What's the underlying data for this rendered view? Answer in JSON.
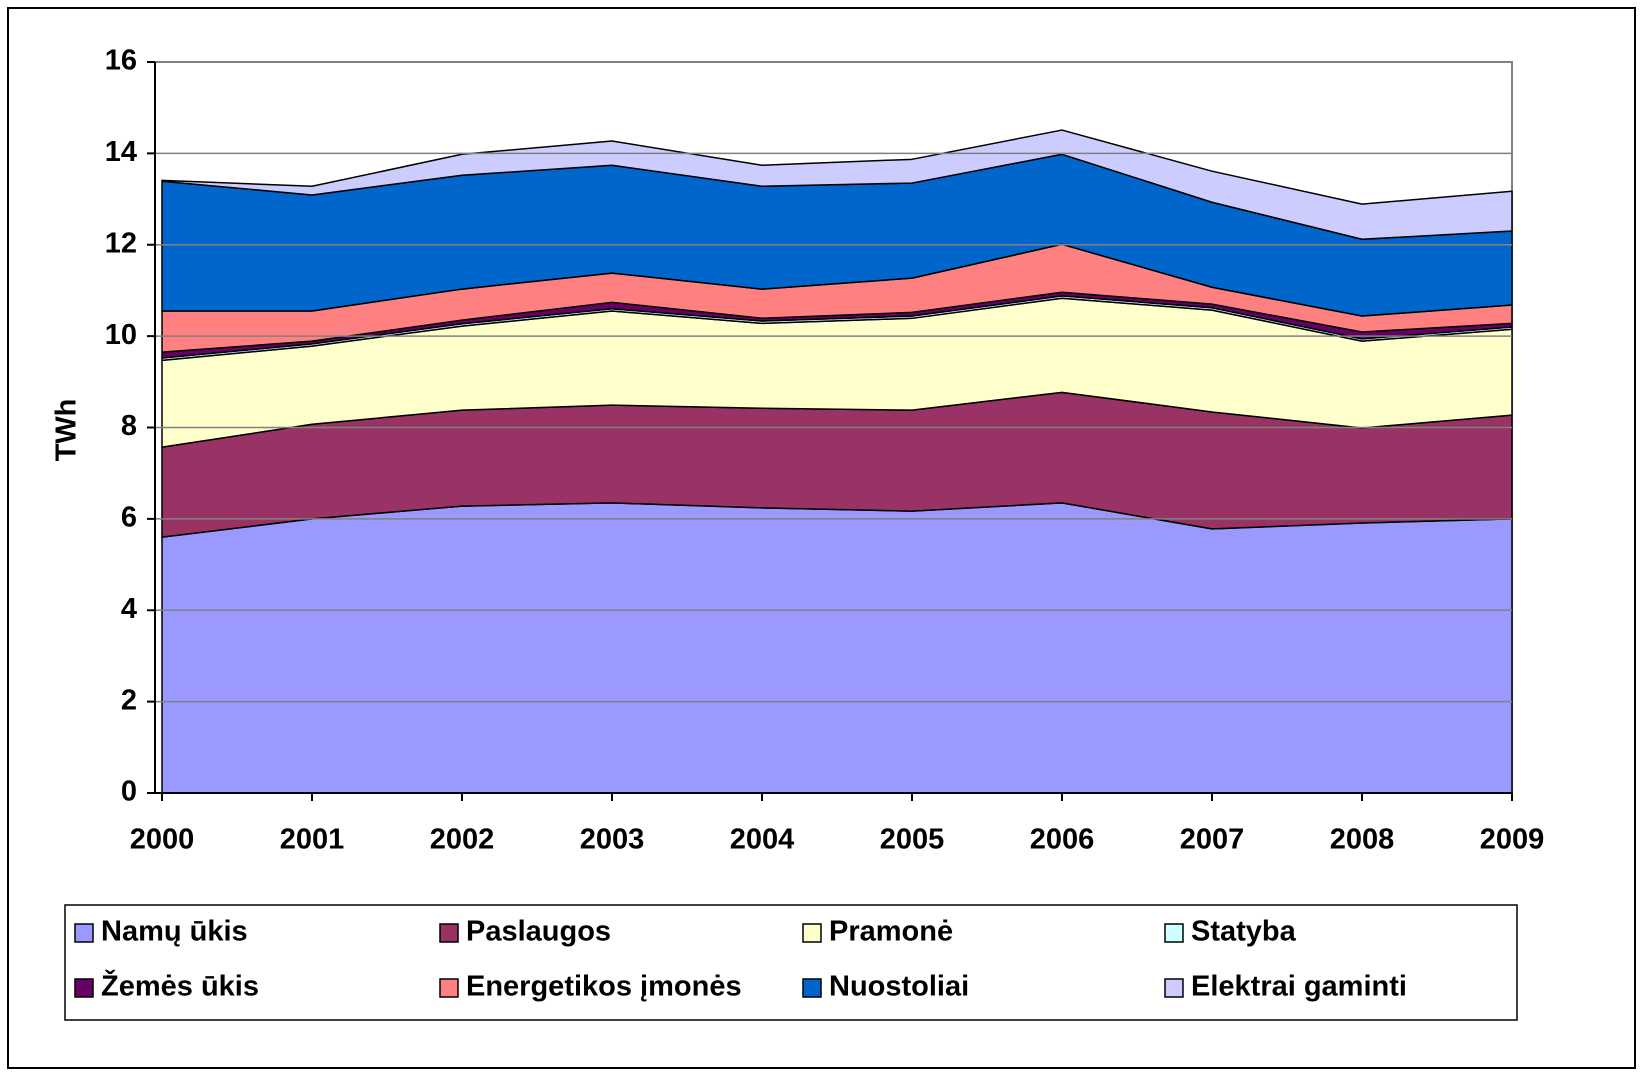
{
  "chart_data": {
    "type": "stacked_area",
    "y_label": "TWh",
    "categories": [
      "2000",
      "2001",
      "2002",
      "2003",
      "2004",
      "2005",
      "2006",
      "2007",
      "2008",
      "2009"
    ],
    "ylim": [
      0,
      16
    ],
    "yticks": [
      0,
      2,
      4,
      6,
      8,
      10,
      12,
      14,
      16
    ],
    "grid": true,
    "series": [
      {
        "name": "Namų ūkis",
        "color": "#9999ff",
        "values": [
          5.6,
          6.0,
          6.28,
          6.35,
          6.24,
          6.17,
          6.35,
          5.78,
          5.91,
          6.0
        ]
      },
      {
        "name": "Paslaugos",
        "color": "#993366",
        "values": [
          1.97,
          2.07,
          2.1,
          2.14,
          2.18,
          2.21,
          2.42,
          2.56,
          2.08,
          2.27
        ]
      },
      {
        "name": "Pramonė",
        "color": "#ffffcc",
        "values": [
          1.9,
          1.71,
          1.84,
          2.06,
          1.86,
          2.01,
          2.06,
          2.23,
          1.9,
          1.88
        ]
      },
      {
        "name": "Statyba",
        "color": "#ccffff",
        "values": [
          0.05,
          0.05,
          0.05,
          0.05,
          0.05,
          0.05,
          0.05,
          0.05,
          0.05,
          0.05
        ]
      },
      {
        "name": "Žemės ūkis",
        "color": "#660066",
        "values": [
          0.13,
          0.06,
          0.08,
          0.14,
          0.06,
          0.08,
          0.08,
          0.08,
          0.15,
          0.08
        ]
      },
      {
        "name": "Energetikos įmonės",
        "color": "#ff8080",
        "values": [
          0.9,
          0.66,
          0.68,
          0.64,
          0.64,
          0.75,
          1.05,
          0.37,
          0.35,
          0.4
        ]
      },
      {
        "name": "Nuostoliai",
        "color": "#0066cc",
        "values": [
          2.84,
          2.54,
          2.49,
          2.36,
          2.25,
          2.08,
          1.97,
          1.86,
          1.68,
          1.62
        ]
      },
      {
        "name": "Elektrai gaminti",
        "color": "#ccccff",
        "values": [
          0.02,
          0.19,
          0.46,
          0.53,
          0.46,
          0.52,
          0.53,
          0.68,
          0.77,
          0.87
        ]
      }
    ]
  }
}
